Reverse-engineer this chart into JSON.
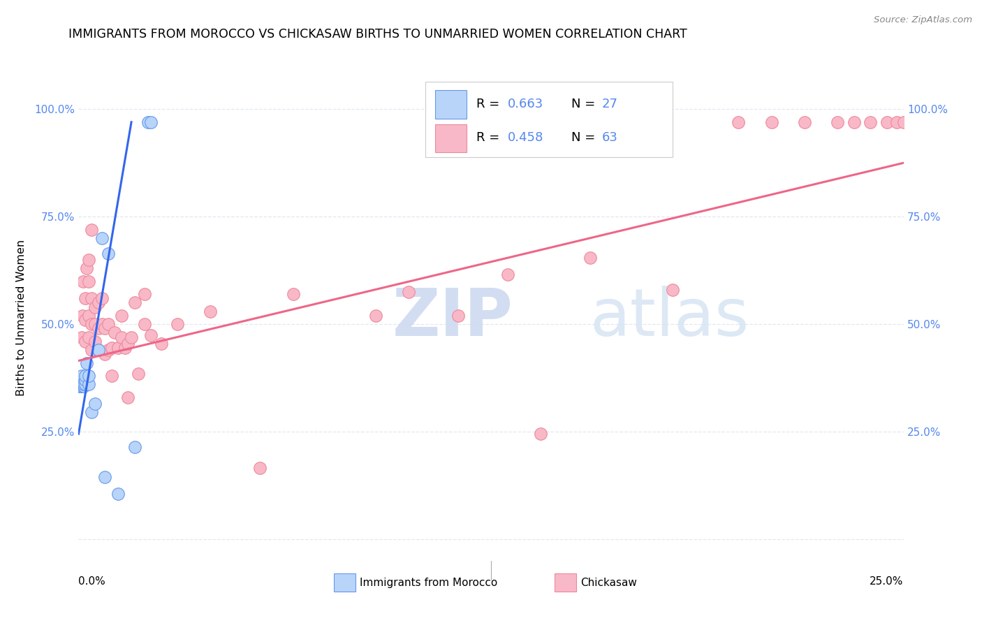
{
  "title": "IMMIGRANTS FROM MOROCCO VS CHICKASAW BIRTHS TO UNMARRIED WOMEN CORRELATION CHART",
  "source": "Source: ZipAtlas.com",
  "ylabel": "Births to Unmarried Women",
  "legend_label1": "Immigrants from Morocco",
  "legend_label2": "Chickasaw",
  "legend_r1": "R = 0.663",
  "legend_n1": "N = 27",
  "legend_r2": "R = 0.458",
  "legend_n2": "N = 63",
  "color_blue_fill": "#b8d4f8",
  "color_blue_edge": "#6699ee",
  "color_pink_fill": "#f8b8c8",
  "color_pink_edge": "#ee8899",
  "color_line_blue": "#3366ee",
  "color_line_pink": "#ee6688",
  "color_ytick": "#5588ee",
  "watermark_color": "#ccddf8",
  "grid_color": "#e0e8f0",
  "xmin": 0.0,
  "xmax": 0.25,
  "ymin": -0.05,
  "ymax": 1.08,
  "ytick_vals": [
    0.0,
    0.25,
    0.5,
    0.75,
    1.0
  ],
  "ytick_labels_left": [
    "",
    "25.0%",
    "50.0%",
    "75.0%",
    "100.0%"
  ],
  "ytick_labels_right": [
    "",
    "25.0%",
    "50.0%",
    "75.0%",
    "100.0%"
  ],
  "blue_x": [
    0.0003,
    0.0005,
    0.0006,
    0.0007,
    0.0008,
    0.001,
    0.001,
    0.0012,
    0.0014,
    0.0015,
    0.0016,
    0.002,
    0.002,
    0.002,
    0.0025,
    0.003,
    0.003,
    0.004,
    0.005,
    0.006,
    0.007,
    0.008,
    0.009,
    0.012,
    0.017,
    0.021,
    0.022
  ],
  "blue_y": [
    0.355,
    0.36,
    0.355,
    0.36,
    0.355,
    0.37,
    0.38,
    0.36,
    0.355,
    0.355,
    0.36,
    0.36,
    0.37,
    0.38,
    0.41,
    0.36,
    0.38,
    0.295,
    0.315,
    0.44,
    0.7,
    0.145,
    0.665,
    0.105,
    0.215,
    0.97,
    0.97
  ],
  "pink_x": [
    0.001,
    0.0012,
    0.0013,
    0.002,
    0.002,
    0.002,
    0.0025,
    0.003,
    0.003,
    0.003,
    0.003,
    0.004,
    0.004,
    0.004,
    0.004,
    0.005,
    0.005,
    0.005,
    0.006,
    0.006,
    0.006,
    0.007,
    0.007,
    0.008,
    0.008,
    0.009,
    0.009,
    0.01,
    0.01,
    0.011,
    0.012,
    0.013,
    0.013,
    0.014,
    0.015,
    0.015,
    0.016,
    0.017,
    0.018,
    0.02,
    0.02,
    0.022,
    0.025,
    0.03,
    0.04,
    0.055,
    0.065,
    0.09,
    0.1,
    0.115,
    0.13,
    0.14,
    0.155,
    0.18,
    0.2,
    0.21,
    0.22,
    0.23,
    0.235,
    0.24,
    0.245,
    0.248,
    0.25
  ],
  "pink_y": [
    0.47,
    0.52,
    0.6,
    0.46,
    0.51,
    0.56,
    0.63,
    0.47,
    0.52,
    0.6,
    0.65,
    0.44,
    0.5,
    0.56,
    0.72,
    0.46,
    0.5,
    0.54,
    0.44,
    0.49,
    0.55,
    0.5,
    0.56,
    0.43,
    0.49,
    0.44,
    0.5,
    0.38,
    0.445,
    0.48,
    0.445,
    0.47,
    0.52,
    0.445,
    0.33,
    0.455,
    0.47,
    0.55,
    0.385,
    0.5,
    0.57,
    0.475,
    0.455,
    0.5,
    0.53,
    0.165,
    0.57,
    0.52,
    0.575,
    0.52,
    0.615,
    0.245,
    0.655,
    0.58,
    0.97,
    0.97,
    0.97,
    0.97,
    0.97,
    0.97,
    0.97,
    0.97,
    0.97
  ],
  "blue_line_x": [
    0.0,
    0.016
  ],
  "blue_line_y": [
    0.245,
    0.97
  ],
  "pink_line_x": [
    0.0,
    0.25
  ],
  "pink_line_y": [
    0.415,
    0.875
  ]
}
